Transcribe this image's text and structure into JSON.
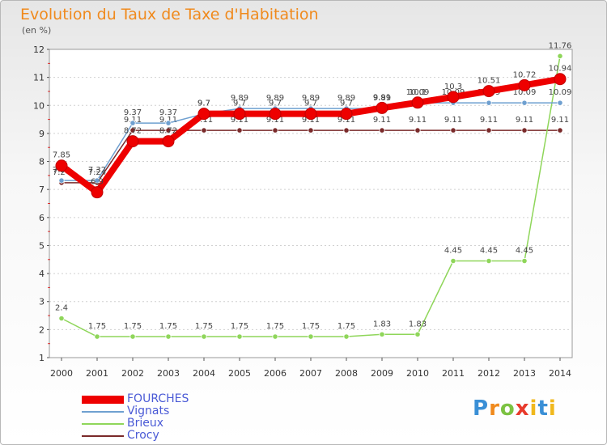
{
  "chart_data": {
    "type": "line",
    "title": "Evolution du Taux de Taxe d'Habitation",
    "subtitle": "(en %)",
    "xlabel": "",
    "ylabel": "(en %)",
    "ylim": [
      1,
      12
    ],
    "yticks": [
      1,
      2,
      3,
      4,
      5,
      6,
      7,
      8,
      9,
      10,
      11,
      12
    ],
    "categories": [
      "2000",
      "2001",
      "2002",
      "2003",
      "2004",
      "2005",
      "2006",
      "2007",
      "2008",
      "2009",
      "2010",
      "2011",
      "2012",
      "2013",
      "2014"
    ],
    "series": [
      {
        "name": "Crocy",
        "color": "#7a2a2a",
        "values": [
          7.24,
          7.24,
          9.11,
          9.11,
          9.11,
          9.11,
          9.11,
          9.11,
          9.11,
          9.11,
          9.11,
          9.11,
          9.11,
          9.11,
          9.11
        ],
        "labels": [
          "7.24",
          "7.24",
          "9.11",
          "9.11",
          "9.11",
          "9.11",
          "9.11",
          "9.11",
          "9.11",
          "9.11",
          "9.11",
          "9.11",
          "9.11",
          "9.11",
          "9.11"
        ]
      },
      {
        "name": "Brieux",
        "color": "#8fd65a",
        "values": [
          2.4,
          1.75,
          1.75,
          1.75,
          1.75,
          1.75,
          1.75,
          1.75,
          1.75,
          1.83,
          1.83,
          4.45,
          4.45,
          4.45,
          11.76
        ],
        "labels": [
          "2.4",
          "1.75",
          "1.75",
          "1.75",
          "1.75",
          "1.75",
          "1.75",
          "1.75",
          "1.75",
          "1.83",
          "1.83",
          "4.45",
          "4.45",
          "4.45",
          "11.76"
        ]
      },
      {
        "name": "Vignats",
        "color": "#6fa0d0",
        "values": [
          7.32,
          7.32,
          9.37,
          9.37,
          9.7,
          9.89,
          9.89,
          9.89,
          9.89,
          9.89,
          10.09,
          10.09,
          10.09,
          10.09,
          10.09
        ],
        "labels": [
          "7.32",
          "7.32",
          "9.37",
          "9.37",
          "9.7",
          "9.89",
          "9.89",
          "9.89",
          "9.89",
          "9.89",
          "10.09",
          "10.09",
          "10.09",
          "10.09",
          "10.09"
        ]
      },
      {
        "name": "FOURCHES",
        "color": "#ee0000",
        "values": [
          7.85,
          6.9,
          8.72,
          8.72,
          9.7,
          9.7,
          9.7,
          9.7,
          9.7,
          9.91,
          10.1,
          10.3,
          10.51,
          10.72,
          10.94
        ],
        "labels": [
          "7.85",
          "6.9",
          "8.72",
          "8.72",
          "9.7",
          "9.7",
          "9.7",
          "9.7",
          "9.7",
          "9.91",
          "10.1",
          "10.3",
          "10.51",
          "10.72",
          "10.94"
        ]
      }
    ]
  },
  "legend": {
    "items": [
      {
        "label": "FOURCHES",
        "color": "#ee0000"
      },
      {
        "label": "Vignats",
        "color": "#6fa0d0"
      },
      {
        "label": "Brieux",
        "color": "#8fd65a"
      },
      {
        "label": "Crocy",
        "color": "#7a2a2a"
      }
    ]
  },
  "logo": {
    "p": "P",
    "r": "r",
    "o": "o",
    "x": "x",
    "i": "i",
    "t": "t",
    "i2": "i"
  }
}
